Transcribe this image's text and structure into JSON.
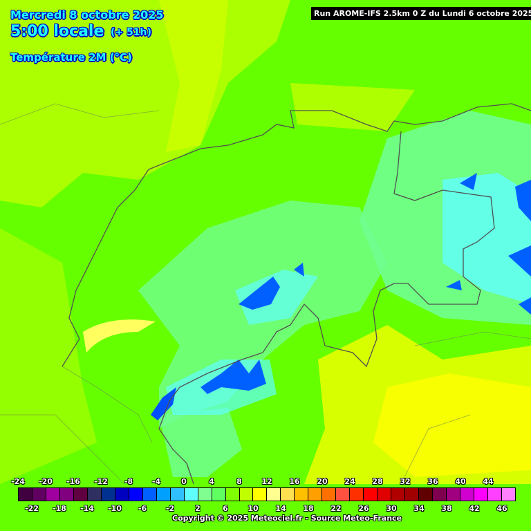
{
  "header": {
    "date": "Mercredi 8 octobre 2025",
    "hour": "5:00 locale",
    "offset": "(+ 51h)",
    "parameter": "Température 2M (°C)",
    "run": "Run AROME-IFS 2.5km 0 Z du Lundi 6 octobre 2025"
  },
  "legend": {
    "upper_labels": [
      "-24",
      "-20",
      "-16",
      "-12",
      "-8",
      "-4",
      "0",
      "4",
      "8",
      "12",
      "16",
      "20",
      "24",
      "28",
      "32",
      "36",
      "40",
      "44"
    ],
    "lower_labels": [
      "-22",
      "-18",
      "-14",
      "-10",
      "-6",
      "-2",
      "2",
      "6",
      "10",
      "14",
      "18",
      "22",
      "26",
      "30",
      "34",
      "38",
      "42",
      "46"
    ],
    "colors": [
      "#400040",
      "#600060",
      "#a000a0",
      "#800080",
      "#600040",
      "#303060",
      "#003090",
      "#0000c0",
      "#0000ff",
      "#0060ff",
      "#00a0ff",
      "#30c0ff",
      "#60ffff",
      "#80ff90",
      "#60ff60",
      "#80ff00",
      "#c0ff00",
      "#ffff00",
      "#ffff90",
      "#ffe050",
      "#ffc000",
      "#ffa000",
      "#ff7000",
      "#ff5040",
      "#ff3000",
      "#ff0000",
      "#e00000",
      "#b00000",
      "#a00000",
      "#600000",
      "#800050",
      "#a00080",
      "#d000d0",
      "#ff00ff",
      "#ff40ff",
      "#ff80ff"
    ]
  },
  "copyright": "Copyright © 2025 Meteociel.fr - Source Meteo-France"
}
